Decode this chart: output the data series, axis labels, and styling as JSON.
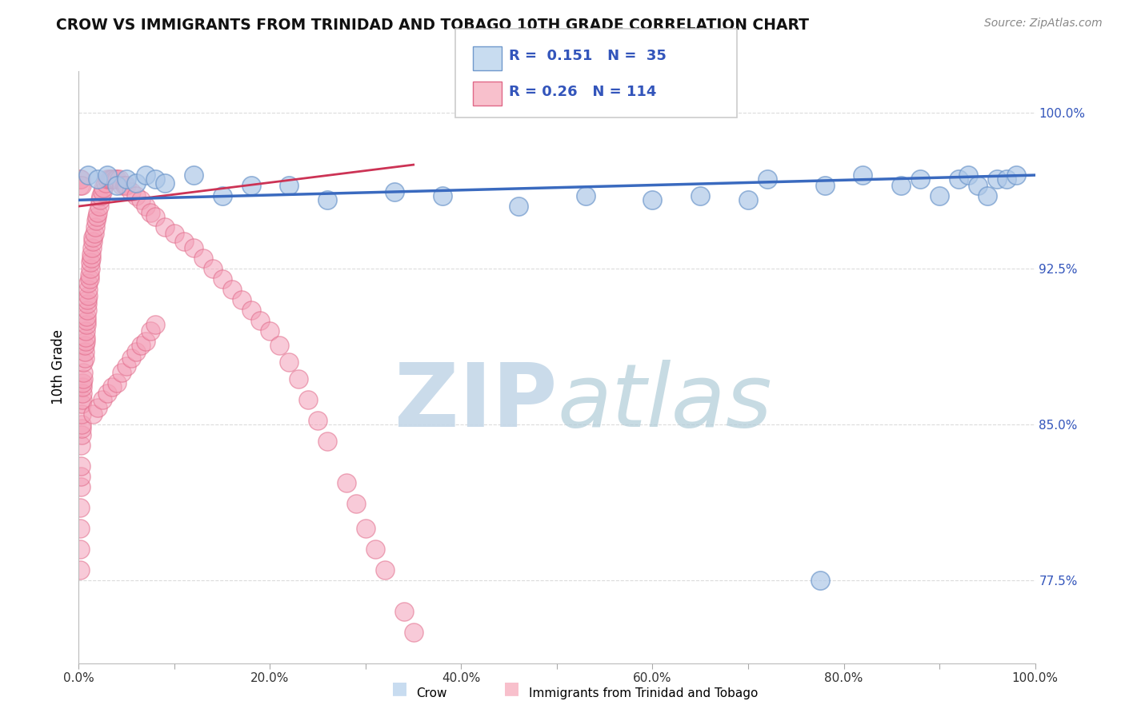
{
  "title": "CROW VS IMMIGRANTS FROM TRINIDAD AND TOBAGO 10TH GRADE CORRELATION CHART",
  "source": "Source: ZipAtlas.com",
  "ylabel": "10th Grade",
  "blue_R": 0.151,
  "blue_N": 35,
  "pink_R": 0.26,
  "pink_N": 114,
  "blue_color": "#aec8e8",
  "blue_edge": "#7099cc",
  "pink_color": "#f4a0b8",
  "pink_edge": "#e06888",
  "trend_blue": "#3a6abf",
  "trend_pink": "#cc3355",
  "watermark_zip_color": "#c5d8e8",
  "watermark_atlas_color": "#b0ccd8",
  "legend_box_blue": "#c8dcf0",
  "legend_box_pink": "#f8c0cc",
  "legend_text_color": "#3355bb",
  "xlim": [
    0.0,
    1.0
  ],
  "ylim": [
    0.735,
    1.02
  ],
  "yticks": [
    0.775,
    0.85,
    0.925,
    1.0
  ],
  "ytick_labels": [
    "77.5%",
    "85.0%",
    "92.5%",
    "100.0%"
  ],
  "xticks": [
    0.0,
    0.1,
    0.2,
    0.3,
    0.4,
    0.5,
    0.6,
    0.7,
    0.8,
    0.9,
    1.0
  ],
  "xtick_labels": [
    "0.0%",
    "",
    "20.0%",
    "",
    "40.0%",
    "",
    "60.0%",
    "",
    "80.0%",
    "",
    "100.0%"
  ],
  "blue_x": [
    0.01,
    0.02,
    0.03,
    0.04,
    0.05,
    0.06,
    0.07,
    0.08,
    0.09,
    0.12,
    0.15,
    0.18,
    0.22,
    0.26,
    0.33,
    0.38,
    0.46,
    0.53,
    0.6,
    0.65,
    0.7,
    0.72,
    0.78,
    0.82,
    0.86,
    0.88,
    0.9,
    0.92,
    0.93,
    0.94,
    0.95,
    0.96,
    0.97,
    0.98,
    0.775
  ],
  "blue_y": [
    0.97,
    0.968,
    0.97,
    0.965,
    0.968,
    0.966,
    0.97,
    0.968,
    0.966,
    0.97,
    0.96,
    0.965,
    0.965,
    0.958,
    0.962,
    0.96,
    0.955,
    0.96,
    0.958,
    0.96,
    0.958,
    0.968,
    0.965,
    0.97,
    0.965,
    0.968,
    0.96,
    0.968,
    0.97,
    0.965,
    0.96,
    0.968,
    0.968,
    0.97,
    0.775
  ],
  "pink_x": [
    0.001,
    0.001,
    0.001,
    0.001,
    0.002,
    0.002,
    0.002,
    0.002,
    0.003,
    0.003,
    0.003,
    0.003,
    0.003,
    0.004,
    0.004,
    0.004,
    0.004,
    0.005,
    0.005,
    0.005,
    0.006,
    0.006,
    0.006,
    0.007,
    0.007,
    0.007,
    0.008,
    0.008,
    0.008,
    0.009,
    0.009,
    0.009,
    0.01,
    0.01,
    0.01,
    0.011,
    0.011,
    0.012,
    0.012,
    0.013,
    0.013,
    0.014,
    0.015,
    0.015,
    0.016,
    0.017,
    0.018,
    0.019,
    0.02,
    0.021,
    0.022,
    0.023,
    0.025,
    0.026,
    0.028,
    0.03,
    0.032,
    0.034,
    0.036,
    0.038,
    0.04,
    0.042,
    0.045,
    0.048,
    0.05,
    0.055,
    0.06,
    0.065,
    0.07,
    0.075,
    0.08,
    0.09,
    0.1,
    0.11,
    0.12,
    0.13,
    0.14,
    0.15,
    0.16,
    0.17,
    0.18,
    0.19,
    0.2,
    0.21,
    0.22,
    0.23,
    0.24,
    0.25,
    0.26,
    0.28,
    0.29,
    0.3,
    0.31,
    0.32,
    0.34,
    0.35,
    0.015,
    0.02,
    0.025,
    0.03,
    0.035,
    0.04,
    0.045,
    0.05,
    0.055,
    0.06,
    0.065,
    0.07,
    0.075,
    0.08,
    0.001,
    0.001,
    0.002,
    0.003
  ],
  "pink_y": [
    0.78,
    0.79,
    0.8,
    0.81,
    0.82,
    0.825,
    0.83,
    0.84,
    0.845,
    0.848,
    0.85,
    0.855,
    0.86,
    0.862,
    0.865,
    0.868,
    0.87,
    0.872,
    0.875,
    0.88,
    0.882,
    0.885,
    0.888,
    0.89,
    0.892,
    0.895,
    0.898,
    0.9,
    0.902,
    0.905,
    0.908,
    0.91,
    0.912,
    0.915,
    0.918,
    0.92,
    0.922,
    0.925,
    0.928,
    0.93,
    0.932,
    0.935,
    0.938,
    0.94,
    0.942,
    0.945,
    0.948,
    0.95,
    0.952,
    0.955,
    0.958,
    0.96,
    0.962,
    0.964,
    0.966,
    0.968,
    0.968,
    0.968,
    0.968,
    0.968,
    0.968,
    0.968,
    0.965,
    0.965,
    0.965,
    0.962,
    0.96,
    0.958,
    0.955,
    0.952,
    0.95,
    0.945,
    0.942,
    0.938,
    0.935,
    0.93,
    0.925,
    0.92,
    0.915,
    0.91,
    0.905,
    0.9,
    0.895,
    0.888,
    0.88,
    0.872,
    0.862,
    0.852,
    0.842,
    0.822,
    0.812,
    0.8,
    0.79,
    0.78,
    0.76,
    0.75,
    0.855,
    0.858,
    0.862,
    0.865,
    0.868,
    0.87,
    0.875,
    0.878,
    0.882,
    0.885,
    0.888,
    0.89,
    0.895,
    0.898,
    0.968,
    0.965,
    0.968,
    0.965
  ],
  "pink_trend_x": [
    0.0,
    0.35
  ],
  "pink_trend_y": [
    0.955,
    0.975
  ],
  "blue_trend_x": [
    0.0,
    1.0
  ],
  "blue_trend_y": [
    0.958,
    0.97
  ]
}
